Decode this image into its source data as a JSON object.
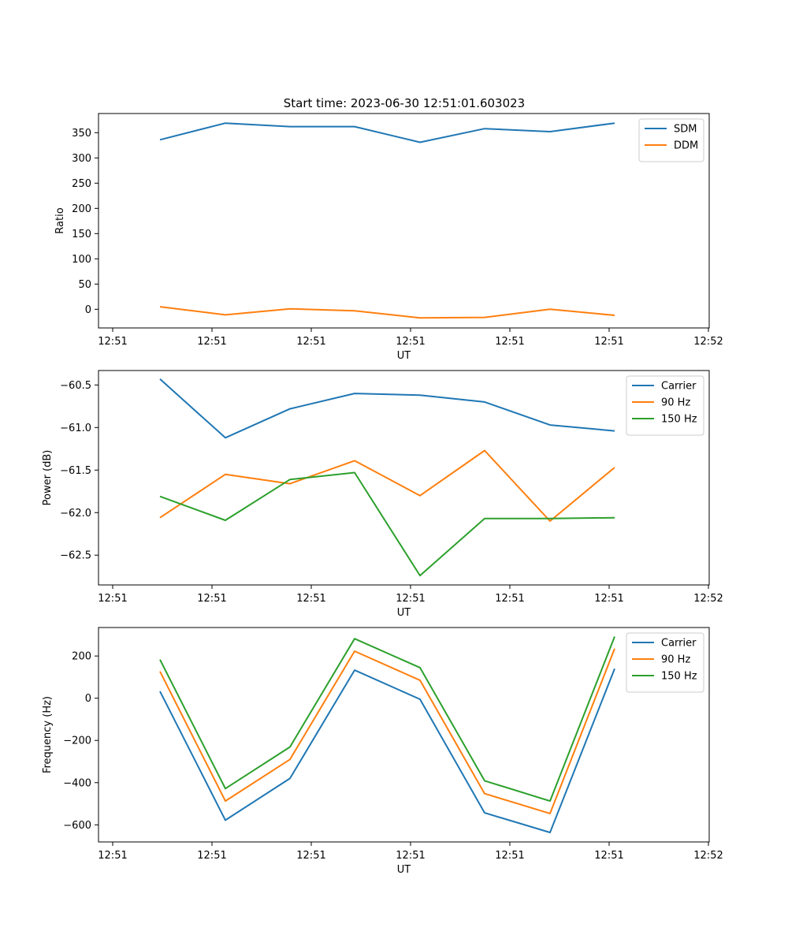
{
  "figure": {
    "title": "Start time: 2023-06-30 12:51:01.603023"
  },
  "chart_data": [
    {
      "type": "line",
      "xlabel": "UT",
      "ylabel": "Ratio",
      "x_tick_labels": [
        "12:51",
        "12:51",
        "12:51",
        "12:51",
        "12:51",
        "12:51",
        "12:52"
      ],
      "ylim": [
        -37,
        388
      ],
      "y_ticks": [
        0,
        50,
        100,
        150,
        200,
        250,
        300,
        350
      ],
      "legend_position": "top-right",
      "series": [
        {
          "name": "SDM",
          "color": "#1f77b4",
          "values": [
            336,
            369,
            362,
            362,
            331,
            358,
            352,
            369
          ]
        },
        {
          "name": "DDM",
          "color": "#ff7f0e",
          "values": [
            5,
            -11,
            1,
            -3,
            -17,
            -16,
            0,
            -12
          ]
        }
      ]
    },
    {
      "type": "line",
      "xlabel": "UT",
      "ylabel": "Power (dB)",
      "x_tick_labels": [
        "12:51",
        "12:51",
        "12:51",
        "12:51",
        "12:51",
        "12:51",
        "12:52"
      ],
      "ylim": [
        -62.85,
        -60.33
      ],
      "y_ticks": [
        -62.5,
        -62.0,
        -61.5,
        -61.0,
        -60.5
      ],
      "y_tick_labels": [
        "−62.5",
        "−62.0",
        "−61.5",
        "−61.0",
        "−60.5"
      ],
      "legend_position": "top-right",
      "series": [
        {
          "name": "Carrier",
          "color": "#1f77b4",
          "values": [
            -60.43,
            -61.12,
            -60.78,
            -60.6,
            -60.62,
            -60.7,
            -60.97,
            -61.04
          ]
        },
        {
          "name": "90 Hz",
          "color": "#ff7f0e",
          "values": [
            -62.06,
            -61.55,
            -61.66,
            -61.39,
            -61.8,
            -61.27,
            -62.1,
            -61.47
          ]
        },
        {
          "name": "150 Hz",
          "color": "#2ca02c",
          "values": [
            -61.81,
            -62.09,
            -61.61,
            -61.53,
            -62.74,
            -62.07,
            -62.07,
            -62.06
          ]
        }
      ]
    },
    {
      "type": "line",
      "xlabel": "UT",
      "ylabel": "Frequency (Hz)",
      "x_tick_labels": [
        "12:51",
        "12:51",
        "12:51",
        "12:51",
        "12:51",
        "12:51",
        "12:52"
      ],
      "ylim": [
        -681,
        335
      ],
      "y_ticks": [
        -600,
        -400,
        -200,
        0,
        200
      ],
      "y_tick_labels": [
        "−600",
        "−400",
        "−200",
        "0",
        "200"
      ],
      "legend_position": "top-right",
      "series": [
        {
          "name": "Carrier",
          "color": "#1f77b4",
          "values": [
            33,
            -578,
            -380,
            133,
            -5,
            -543,
            -636,
            140
          ]
        },
        {
          "name": "90 Hz",
          "color": "#ff7f0e",
          "values": [
            127,
            -487,
            -290,
            223,
            85,
            -452,
            -546,
            235
          ]
        },
        {
          "name": "150 Hz",
          "color": "#2ca02c",
          "values": [
            183,
            -428,
            -231,
            282,
            145,
            -391,
            -487,
            292
          ]
        }
      ]
    }
  ]
}
